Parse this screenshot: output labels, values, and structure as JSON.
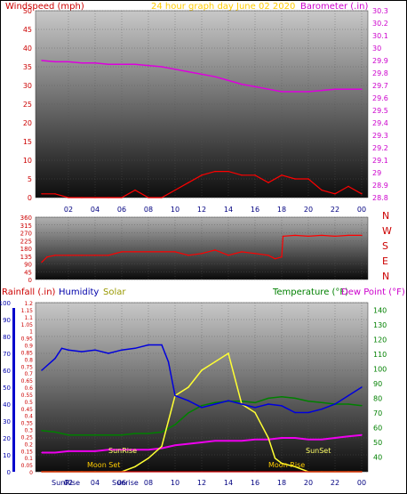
{
  "header": {
    "left_title": "Windspeed (mph)",
    "center_title": "24 hour graph day   June 02 2020",
    "right_title": "Barometer (.in)"
  },
  "panel3": {
    "title_rainfall": "Rainfall (.in)",
    "title_humidity": "Humidity",
    "title_solar": "Solar",
    "title_temperature": "Temperature (°F)",
    "title_dewpoint": "Dew Point (°F)"
  },
  "colors": {
    "windspeed": "#ff0000",
    "gust": "#008000",
    "barometer": "#dd00dd",
    "direction": "#ff0000",
    "rainfall": "#cc0000",
    "humidity": "#0000dd",
    "solar": "#ffff33",
    "temperature": "#008000",
    "dewpoint": "#ee00ee",
    "title_left": "#cc0000",
    "title_center": "#ffcc00",
    "title_right": "#cc00cc",
    "title_temp": "#008000",
    "title_dew": "#cc00cc",
    "title_solar": "#999900",
    "title_humidity": "#0000aa"
  },
  "chart_data": [
    {
      "type": "line",
      "title": "24 hour graph day   June 02 2020",
      "x_ticks": [
        "02",
        "04",
        "06",
        "08",
        "10",
        "12",
        "14",
        "16",
        "18",
        "20",
        "22",
        "00"
      ],
      "left_axis": {
        "label": "Windspeed (mph)",
        "ylim": [
          0,
          50
        ],
        "ticks": [
          0,
          5,
          10,
          15,
          20,
          25,
          30,
          35,
          40,
          45,
          50
        ]
      },
      "right_axis": {
        "label": "Barometer (.in)",
        "ylim": [
          28.8,
          30.3
        ],
        "ticks": [
          28.8,
          28.9,
          29,
          29.1,
          29.2,
          29.3,
          29.4,
          29.5,
          29.6,
          29.7,
          29.8,
          29.9,
          30,
          30.1,
          30.2,
          30.3
        ]
      },
      "grid": true,
      "series": [
        {
          "name": "Windspeed (mph)",
          "axis": "left",
          "x": [
            0,
            1,
            2,
            3,
            4,
            5,
            6,
            7,
            8,
            9,
            10,
            11,
            12,
            13,
            14,
            15,
            16,
            17,
            18,
            19,
            20,
            21,
            22,
            23,
            24
          ],
          "values": [
            1,
            1,
            0,
            0,
            0,
            0,
            0,
            2,
            0,
            0,
            2,
            4,
            6,
            7,
            7,
            6,
            6,
            4,
            6,
            5,
            5,
            2,
            1,
            3,
            1
          ]
        },
        {
          "name": "Barometer (.in)",
          "axis": "right",
          "x": [
            0,
            1,
            2,
            3,
            4,
            5,
            6,
            7,
            8,
            9,
            10,
            11,
            12,
            13,
            14,
            15,
            16,
            17,
            18,
            19,
            20,
            21,
            22,
            23,
            24
          ],
          "values": [
            29.9,
            29.89,
            29.89,
            29.88,
            29.88,
            29.87,
            29.87,
            29.87,
            29.86,
            29.85,
            29.83,
            29.81,
            29.79,
            29.77,
            29.74,
            29.71,
            29.69,
            29.67,
            29.65,
            29.65,
            29.65,
            29.66,
            29.67,
            29.67,
            29.67
          ]
        }
      ]
    },
    {
      "type": "line",
      "title": "",
      "x_ticks": [],
      "left_axis": {
        "label": "",
        "ylim": [
          0,
          360
        ],
        "ticks": [
          0,
          45,
          90,
          135,
          180,
          225,
          270,
          315,
          360
        ]
      },
      "right_labels": [
        "N",
        "W",
        "S",
        "E",
        "N"
      ],
      "grid": true,
      "series": [
        {
          "name": "Wind direction",
          "x": [
            0,
            0.4,
            1,
            2,
            3,
            4,
            5,
            6,
            7,
            8,
            9,
            10,
            11,
            12,
            13,
            14,
            15,
            16,
            17,
            17.5,
            18,
            18.1,
            19,
            20,
            21,
            22,
            23,
            24
          ],
          "values": [
            100,
            130,
            140,
            140,
            140,
            140,
            140,
            160,
            160,
            160,
            160,
            160,
            140,
            150,
            170,
            140,
            160,
            150,
            140,
            120,
            130,
            250,
            255,
            250,
            255,
            250,
            255,
            255
          ]
        }
      ]
    },
    {
      "type": "line",
      "title": "",
      "x_ticks": [
        "02",
        "04",
        "06",
        "08",
        "10",
        "12",
        "14",
        "16",
        "18",
        "20",
        "22",
        "00"
      ],
      "left_axis": {
        "label": "Rainfall (.in) / Humidity",
        "ylim": [
          0,
          100
        ],
        "ticks": [
          0,
          10,
          20,
          30,
          40,
          50,
          60,
          70,
          80,
          90,
          100
        ]
      },
      "rain_axis": {
        "ylim": [
          0,
          1.2
        ],
        "ticks": [
          0,
          0.05,
          0.1,
          0.15,
          0.2,
          0.25,
          0.3,
          0.35,
          0.4,
          0.45,
          0.5,
          0.55,
          0.6,
          0.65,
          0.7,
          0.75,
          0.8,
          0.85,
          0.9,
          0.95,
          1,
          1.05,
          1.1,
          1.15,
          1.2
        ]
      },
      "right_axis": {
        "label": "Temperature (°F)",
        "ylim": [
          30,
          145
        ],
        "ticks": [
          40,
          50,
          60,
          70,
          80,
          90,
          100,
          110,
          120,
          130,
          140
        ]
      },
      "annotations": [
        "SunRise",
        "Moon Set",
        "SunSet",
        "Moon Rise",
        "Sunrise",
        "SunRise"
      ],
      "grid": true,
      "series": [
        {
          "name": "Humidity",
          "x": [
            0,
            1,
            1.5,
            2,
            3,
            4,
            5,
            6,
            7,
            8,
            9,
            9.5,
            10,
            11,
            12,
            13,
            14,
            15,
            16,
            17,
            18,
            19,
            20,
            21,
            22,
            23,
            24
          ],
          "values": [
            60,
            67,
            73,
            72,
            71,
            72,
            70,
            72,
            73,
            75,
            75,
            65,
            45,
            42,
            38,
            40,
            42,
            40,
            38,
            40,
            39,
            35,
            35,
            37,
            40,
            45,
            50
          ]
        },
        {
          "name": "Solar",
          "x": [
            0,
            1,
            2,
            3,
            4,
            5,
            6,
            7,
            8,
            9,
            9.5,
            10,
            11,
            12,
            13,
            14,
            15,
            16,
            17,
            17.5,
            18,
            19,
            20,
            21,
            22,
            23,
            24
          ],
          "values": [
            0,
            0,
            0,
            0,
            0,
            0,
            0,
            3,
            8,
            15,
            30,
            45,
            50,
            60,
            65,
            70,
            40,
            35,
            20,
            8,
            5,
            3,
            0,
            0,
            0,
            0,
            0
          ]
        },
        {
          "name": "Temperature (°F)",
          "x": [
            0,
            1,
            2,
            3,
            4,
            5,
            6,
            7,
            8,
            9,
            10,
            11,
            12,
            13,
            14,
            15,
            16,
            17,
            18,
            19,
            20,
            21,
            22,
            23,
            24
          ],
          "values": [
            58,
            57,
            55,
            55,
            55,
            55,
            55,
            56,
            56,
            57,
            62,
            70,
            75,
            77,
            78,
            78,
            77,
            80,
            81,
            80,
            78,
            77,
            76,
            76,
            75
          ]
        },
        {
          "name": "Dew Point (°F)",
          "x": [
            0,
            1,
            2,
            3,
            4,
            5,
            6,
            7,
            8,
            9,
            10,
            11,
            12,
            13,
            14,
            15,
            16,
            17,
            18,
            19,
            20,
            21,
            22,
            23,
            24
          ],
          "values": [
            43,
            43,
            44,
            44,
            44,
            45,
            45,
            45,
            45,
            46,
            48,
            49,
            50,
            51,
            51,
            51,
            52,
            52,
            53,
            53,
            52,
            52,
            53,
            54,
            55
          ]
        },
        {
          "name": "Rainfall (.in)",
          "x": [
            0,
            24
          ],
          "values": [
            0,
            0
          ]
        }
      ]
    }
  ]
}
